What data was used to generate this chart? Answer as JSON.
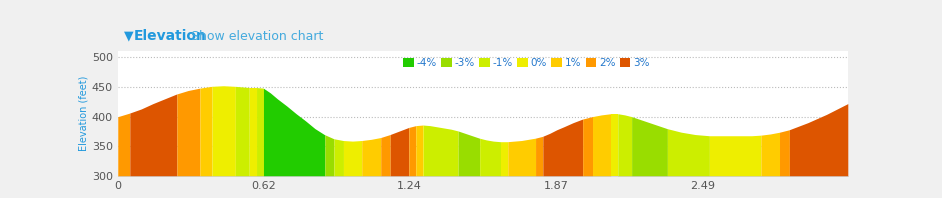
{
  "header_bg": "#e8e8e8",
  "header_title": "Elevation",
  "header_subtitle": "Show elevation chart",
  "header_title_color": "#2299dd",
  "header_subtitle_color": "#44aadd",
  "header_arrow_color": "#2299dd",
  "ylabel": "Elevation (feet)",
  "ylabel_color": "#2299dd",
  "xlim": [
    0,
    3.11
  ],
  "ylim": [
    300,
    510
  ],
  "yticks": [
    300,
    350,
    400,
    450,
    500
  ],
  "xticks": [
    0,
    0.62,
    1.24,
    1.87,
    2.49
  ],
  "xtick_labels": [
    "0",
    "0.62",
    "1.24",
    "1.87",
    "2.49"
  ],
  "background_color": "#f0f0f0",
  "plot_bg_color": "#ffffff",
  "grid_color": "#bbbbbb",
  "legend_labels": [
    "-4%",
    "-3%",
    "-1%",
    "0%",
    "1%",
    "2%",
    "3%"
  ],
  "legend_colors": [
    "#22cc00",
    "#99dd00",
    "#ccee00",
    "#eeee00",
    "#ffcc00",
    "#ff9900",
    "#dd5500"
  ],
  "base_elevation": 300,
  "grade_color_map": [
    [
      -100,
      -3.5,
      "#22cc00"
    ],
    [
      -3.5,
      -2.0,
      "#99dd00"
    ],
    [
      -2.0,
      -0.5,
      "#ccee00"
    ],
    [
      -0.5,
      0.5,
      "#eeee00"
    ],
    [
      0.5,
      1.5,
      "#ffcc00"
    ],
    [
      1.5,
      2.5,
      "#ff9900"
    ],
    [
      2.5,
      100,
      "#dd5500"
    ]
  ],
  "x_data": [
    0.0,
    0.05,
    0.1,
    0.15,
    0.2,
    0.25,
    0.3,
    0.35,
    0.4,
    0.45,
    0.5,
    0.53,
    0.56,
    0.59,
    0.62,
    0.65,
    0.68,
    0.72,
    0.76,
    0.8,
    0.84,
    0.88,
    0.92,
    0.96,
    1.0,
    1.04,
    1.08,
    1.12,
    1.16,
    1.2,
    1.24,
    1.27,
    1.3,
    1.33,
    1.36,
    1.39,
    1.42,
    1.45,
    1.48,
    1.51,
    1.54,
    1.57,
    1.6,
    1.63,
    1.66,
    1.69,
    1.72,
    1.75,
    1.78,
    1.81,
    1.84,
    1.87,
    1.9,
    1.94,
    1.98,
    2.02,
    2.06,
    2.1,
    2.13,
    2.16,
    2.19,
    2.22,
    2.25,
    2.28,
    2.31,
    2.34,
    2.37,
    2.4,
    2.43,
    2.46,
    2.49,
    2.52,
    2.55,
    2.58,
    2.62,
    2.66,
    2.7,
    2.74,
    2.78,
    2.82,
    2.86,
    2.9,
    2.94,
    2.98,
    3.02,
    3.06,
    3.11
  ],
  "y_data": [
    400,
    406,
    413,
    422,
    430,
    438,
    444,
    448,
    451,
    452,
    451,
    450,
    449,
    449,
    448,
    440,
    430,
    418,
    405,
    393,
    380,
    370,
    363,
    360,
    359,
    360,
    362,
    365,
    370,
    376,
    382,
    385,
    386,
    385,
    383,
    381,
    379,
    376,
    372,
    368,
    364,
    361,
    359,
    358,
    358,
    359,
    360,
    362,
    364,
    367,
    372,
    378,
    383,
    390,
    396,
    400,
    403,
    405,
    405,
    403,
    400,
    396,
    392,
    388,
    384,
    380,
    377,
    374,
    372,
    370,
    369,
    368,
    368,
    368,
    368,
    368,
    368,
    369,
    371,
    374,
    378,
    384,
    390,
    397,
    404,
    412,
    422
  ]
}
